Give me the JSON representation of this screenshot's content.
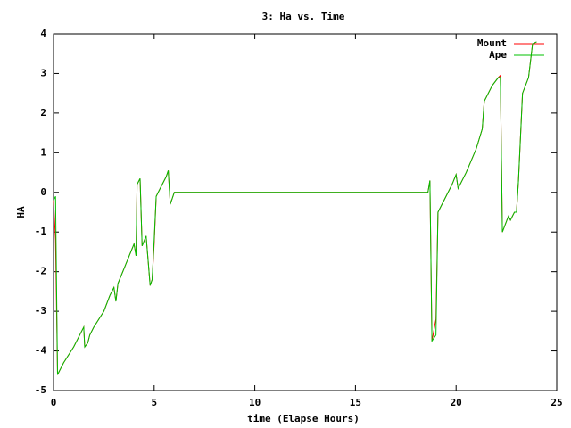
{
  "chart_data": {
    "type": "line",
    "title": "3: Ha vs. Time",
    "x_label": "time (Elapse Hours)",
    "y_label": "HA",
    "x": [
      0,
      0.1,
      0.2,
      0.3,
      0.5,
      1.0,
      1.4,
      1.5,
      1.55,
      1.7,
      1.8,
      2.0,
      2.5,
      2.8,
      3.0,
      3.1,
      3.2,
      3.6,
      4.0,
      4.1,
      4.15,
      4.3,
      4.4,
      4.6,
      4.8,
      4.9,
      5.0,
      5.1,
      5.2,
      5.6,
      5.7,
      5.8,
      6.0,
      18.6,
      18.7,
      18.8,
      19.0,
      19.1,
      19.5,
      19.8,
      20.0,
      20.1,
      20.5,
      21.0,
      21.3,
      21.4,
      21.8,
      22.1,
      22.2,
      22.3,
      22.6,
      22.7,
      22.9,
      23.0,
      23.1,
      23.3,
      23.6,
      23.8,
      24.0
    ],
    "series": [
      {
        "name": "Mount",
        "color": "#ff0000",
        "values": [
          -0.2,
          -1.2,
          -4.6,
          -4.5,
          -4.3,
          -3.9,
          -3.5,
          -3.4,
          -3.9,
          -3.8,
          -3.6,
          -3.4,
          -3.0,
          -2.6,
          -2.4,
          -2.75,
          -2.3,
          -1.8,
          -1.3,
          -1.6,
          0.2,
          0.35,
          -1.35,
          -1.1,
          -2.35,
          -2.2,
          -1.3,
          -0.1,
          0.0,
          0.4,
          0.55,
          -0.3,
          0,
          0,
          0.3,
          -3.75,
          -3.2,
          -0.5,
          -0.1,
          0.2,
          0.45,
          0.1,
          0.5,
          1.1,
          1.6,
          2.3,
          2.7,
          2.9,
          2.95,
          -1.0,
          -0.6,
          -0.7,
          -0.5,
          -0.5,
          0.3,
          2.5,
          2.9,
          3.75,
          3.8
        ]
      },
      {
        "name": "Ape",
        "color": "#00c000",
        "values": [
          -0.2,
          -0.1,
          -4.6,
          -4.5,
          -4.3,
          -3.9,
          -3.5,
          -3.4,
          -3.9,
          -3.8,
          -3.6,
          -3.4,
          -3.0,
          -2.6,
          -2.4,
          -2.75,
          -2.3,
          -1.8,
          -1.3,
          -1.6,
          0.2,
          0.35,
          -1.35,
          -1.1,
          -2.35,
          -2.2,
          -1.2,
          -0.1,
          0.0,
          0.4,
          0.55,
          -0.3,
          0,
          0,
          0.3,
          -3.75,
          -3.6,
          -0.5,
          -0.1,
          0.2,
          0.45,
          0.1,
          0.5,
          1.1,
          1.6,
          2.3,
          2.7,
          2.9,
          2.9,
          -1.0,
          -0.6,
          -0.7,
          -0.5,
          -0.5,
          0.3,
          2.5,
          2.9,
          3.75,
          3.8
        ]
      }
    ],
    "xlim": [
      0,
      25
    ],
    "xticks": [
      0,
      5,
      10,
      15,
      20,
      25
    ],
    "ylim": [
      -5,
      4
    ],
    "yticks": [
      -5,
      -4,
      -3,
      -2,
      -1,
      0,
      1,
      2,
      3,
      4
    ],
    "legend": "upper right"
  }
}
